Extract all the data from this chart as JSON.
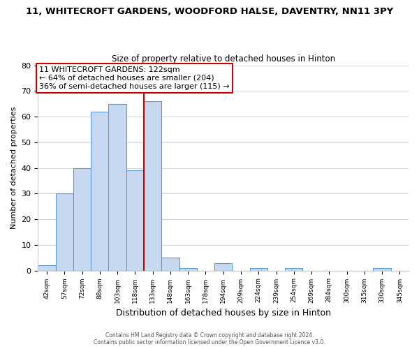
{
  "title": "11, WHITECROFT GARDENS, WOODFORD HALSE, DAVENTRY, NN11 3PY",
  "subtitle": "Size of property relative to detached houses in Hinton",
  "xlabel": "Distribution of detached houses by size in Hinton",
  "ylabel": "Number of detached properties",
  "bar_color": "#c6d9f0",
  "bar_edge_color": "#5b9bd5",
  "categories": [
    "42sqm",
    "57sqm",
    "72sqm",
    "88sqm",
    "103sqm",
    "118sqm",
    "133sqm",
    "148sqm",
    "163sqm",
    "178sqm",
    "194sqm",
    "209sqm",
    "224sqm",
    "239sqm",
    "254sqm",
    "269sqm",
    "284sqm",
    "300sqm",
    "315sqm",
    "330sqm",
    "345sqm"
  ],
  "values": [
    2,
    30,
    40,
    62,
    65,
    39,
    66,
    5,
    1,
    0,
    3,
    0,
    1,
    0,
    1,
    0,
    0,
    0,
    0,
    1,
    0
  ],
  "ylim": [
    0,
    80
  ],
  "yticks": [
    0,
    10,
    20,
    30,
    40,
    50,
    60,
    70,
    80
  ],
  "property_label": "11 WHITECROFT GARDENS: 122sqm",
  "annotation_line1": "← 64% of detached houses are smaller (204)",
  "annotation_line2": "36% of semi-detached houses are larger (115) →",
  "vline_color": "#cc0000",
  "vline_x": 5.5,
  "annotation_box_color": "#ffffff",
  "annotation_box_edge": "#cc0000",
  "footer_line1": "Contains HM Land Registry data © Crown copyright and database right 2024.",
  "footer_line2": "Contains public sector information licensed under the Open Government Licence v3.0.",
  "background_color": "#ffffff",
  "grid_color": "#d0d8e8"
}
